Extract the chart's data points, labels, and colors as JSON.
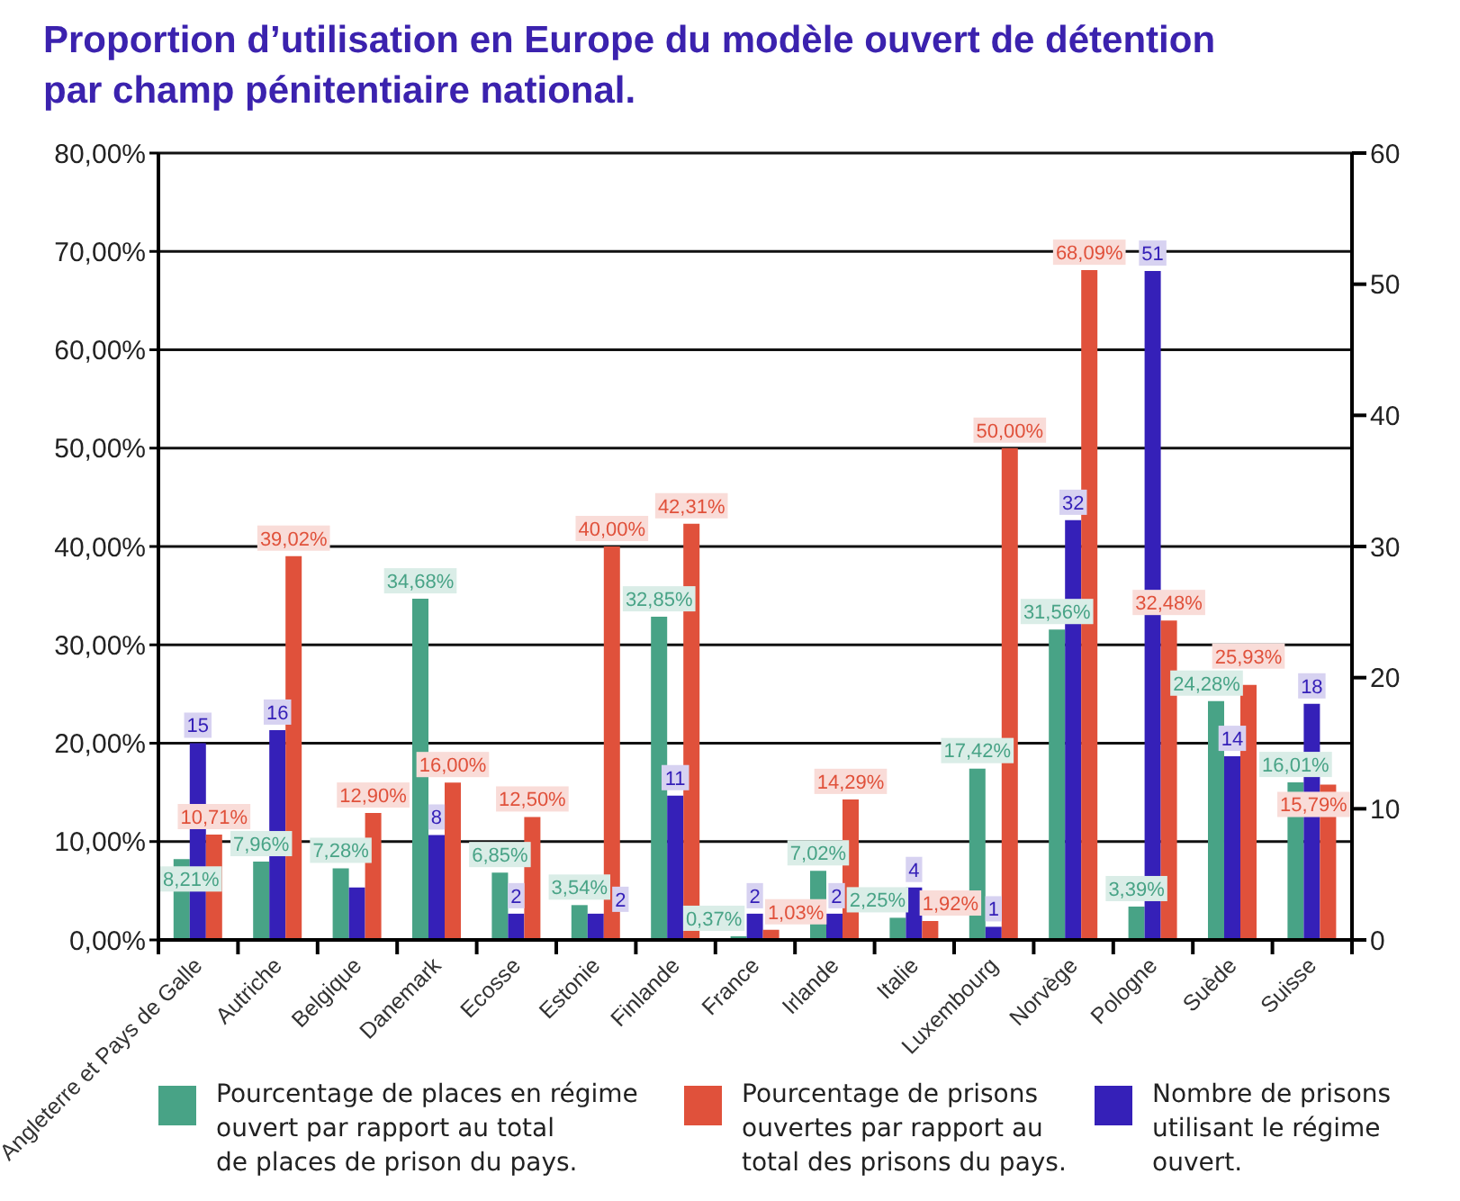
{
  "chart_data": {
    "type": "bar",
    "title": "Proportion d’utilisation en Europe du modèle ouvert de détention par champ pénitentiaire national.",
    "categories": [
      "Angleterre et Pays de Galle",
      "Autriche",
      "Belgique",
      "Danemark",
      "Ecosse",
      "Estonie",
      "Finlande",
      "France",
      "Irlande",
      "Italie",
      "Luxembourg",
      "Norvège",
      "Pologne",
      "Suède",
      "Suisse"
    ],
    "series": [
      {
        "name": "Pourcentage de places en régime\nouvert par rapport au total\nde places de prison du pays.",
        "color": "#48a386",
        "values": [
          8.21,
          7.96,
          7.28,
          34.68,
          6.85,
          3.54,
          32.85,
          0.37,
          7.02,
          2.25,
          17.42,
          31.56,
          3.39,
          24.28,
          16.01
        ],
        "value_labels": [
          "8,21%",
          "7,96%",
          "7,28%",
          "34,68%",
          "6,85%",
          "3,54%",
          "32,85%",
          "0,37%",
          "7,02%",
          "2,25%",
          "17,42%",
          "31,56%",
          "3,39%",
          "24,28%",
          "16,01%"
        ]
      },
      {
        "name": "Nombre de prisons\nutilisant le régime\nouvert.",
        "color": "#3520b8",
        "axis": "y2",
        "values": [
          15,
          16,
          4,
          8,
          2,
          2,
          11,
          2,
          2,
          4,
          1,
          32,
          51,
          14,
          18
        ],
        "value_labels": [
          "15",
          "16",
          null,
          "8",
          "2",
          "2",
          "11",
          "2",
          "2",
          "4",
          "1",
          "32",
          "51",
          "14",
          "18"
        ]
      },
      {
        "name": "Pourcentage de prisons\nouvertes par rapport au\ntotal des prisons du pays.",
        "color": "#e0513b",
        "values": [
          10.71,
          39.02,
          12.9,
          16.0,
          12.5,
          40.0,
          42.31,
          1.03,
          14.29,
          1.92,
          50.0,
          68.09,
          32.48,
          25.93,
          15.79
        ],
        "value_labels": [
          "10,71%",
          "39,02%",
          "12,90%",
          "16,00%",
          "12,50%",
          "40,00%",
          "42,31%",
          "1,03%",
          "14,29%",
          "1,92%",
          "50,00%",
          "68,09%",
          "32,48%",
          "25,93%",
          "15,79%"
        ]
      }
    ],
    "ylim": [
      0,
      80
    ],
    "yticks": [
      {
        "value": 0,
        "label": "0,00%"
      },
      {
        "value": 10,
        "label": "10,00%"
      },
      {
        "value": 20,
        "label": "20,00%"
      },
      {
        "value": 30,
        "label": "30,00%"
      },
      {
        "value": 40,
        "label": "40,00%"
      },
      {
        "value": 50,
        "label": "50,00%"
      },
      {
        "value": 60,
        "label": "60,00%"
      },
      {
        "value": 70,
        "label": "70,00%"
      },
      {
        "value": 80,
        "label": "80,00%"
      }
    ],
    "y2lim": [
      0,
      60
    ],
    "y2ticks": [
      0,
      10,
      20,
      30,
      40,
      50,
      60
    ],
    "grid": "y",
    "legend": "bottom"
  }
}
